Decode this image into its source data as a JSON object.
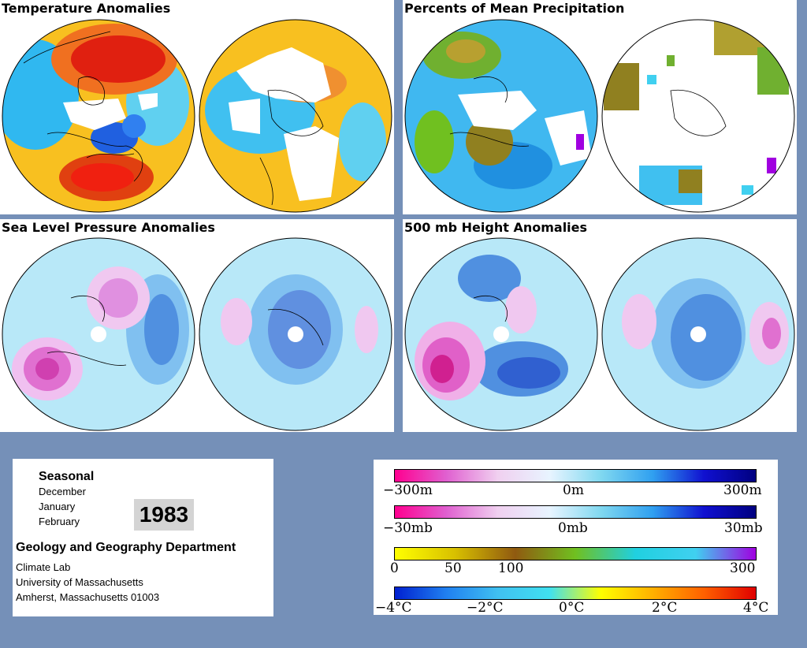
{
  "panels": {
    "temperature_title": "Temperature Anomalies",
    "precipitation_title": "Percents of Mean Precipitation",
    "slp_title": "Sea Level Pressure Anomalies",
    "height_title": "500 mb Height Anomalies"
  },
  "info": {
    "season_label": "Seasonal",
    "months": [
      "December",
      "January",
      "February"
    ],
    "year": "1983",
    "department": "Geology and Geography Department",
    "lab": "Climate Lab",
    "university": "University of Massachusetts",
    "address": "Amherst, Massachusetts 01003"
  },
  "legends": {
    "height": {
      "left": "−300m",
      "mid": "0m",
      "right": "300m",
      "colors": [
        "#ff0090",
        "#e060d0",
        "#f0d0f0",
        "#e8f4ff",
        "#80d8f0",
        "#30a0f0",
        "#1010d0",
        "#000080"
      ]
    },
    "pressure": {
      "left": "−30mb",
      "mid": "0mb",
      "right": "30mb",
      "colors": [
        "#ff0090",
        "#e060d0",
        "#f0d0f0",
        "#e8f4ff",
        "#80d8f0",
        "#30a0f0",
        "#1010d0",
        "#000080"
      ]
    },
    "precip": {
      "labels": [
        "0",
        "50",
        "100",
        "300"
      ],
      "colors": [
        "#ffff00",
        "#d8c000",
        "#905a10",
        "#70c020",
        "#20d0e0",
        "#40d0f0",
        "#a000e0"
      ]
    },
    "temp": {
      "labels": [
        "−4°C",
        "−2°C",
        "0°C",
        "2°C",
        "4°C"
      ],
      "colors": [
        "#0020d0",
        "#2080f0",
        "#40c0f0",
        "#40e0f0",
        "#ffff00",
        "#ffb000",
        "#ff6000",
        "#e00000"
      ]
    }
  }
}
